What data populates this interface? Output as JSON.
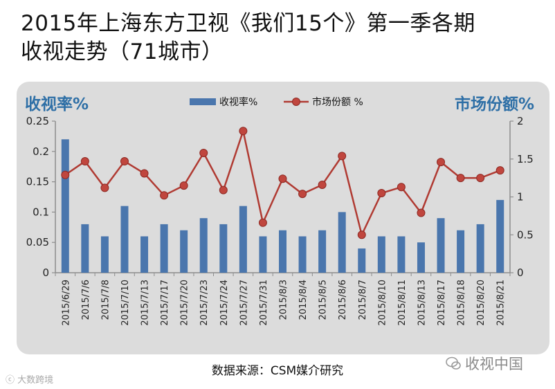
{
  "header": {
    "title_line1": "2015年上海东方卫视《我们15个》第一季各期",
    "title_line2": "收视走势（71城市）"
  },
  "footer": {
    "source": "数据来源：CSM媒介研究",
    "watermark_left": "大数跨境",
    "watermark_right": "收视中国"
  },
  "colors": {
    "bar": "#4a76ad",
    "line": "#b03a32",
    "marker": "#c0463e",
    "axis_title": "#2e6fa6",
    "panel": "#dcdcdc"
  },
  "icons": {
    "watermark_left": "camera-logo-icon",
    "watermark_right": "chat-bubble-logo-icon"
  },
  "chart_data": {
    "type": "bar",
    "left_title": "收视率%",
    "right_title": "市场份额%",
    "categories": [
      "2015/6/29",
      "2015/7/6",
      "2015/7/8",
      "2015/7/10",
      "2015/7/13",
      "2015/7/17",
      "2015/7/20",
      "2015/7/23",
      "2015/7/24",
      "2015/7/27",
      "2015/7/31",
      "2015/8/3",
      "2015/8/4",
      "2015/8/5",
      "2015/8/6",
      "2015/8/7",
      "2015/8/10",
      "2015/8/11",
      "2015/8/13",
      "2015/8/17",
      "2015/8/18",
      "2015/8/20",
      "2015/8/21"
    ],
    "series": [
      {
        "name": "收视率%",
        "type": "bar",
        "axis": "left",
        "values": [
          0.22,
          0.08,
          0.06,
          0.11,
          0.06,
          0.08,
          0.07,
          0.09,
          0.08,
          0.11,
          0.06,
          0.07,
          0.06,
          0.07,
          0.1,
          0.04,
          0.06,
          0.06,
          0.05,
          0.09,
          0.07,
          0.08,
          0.12
        ]
      },
      {
        "name": "市场份额 %",
        "type": "line",
        "axis": "right",
        "values": [
          1.29,
          1.47,
          1.12,
          1.47,
          1.31,
          1.02,
          1.15,
          1.58,
          1.09,
          1.87,
          0.66,
          1.24,
          1.04,
          1.16,
          1.54,
          0.5,
          1.05,
          1.13,
          0.79,
          1.46,
          1.25,
          1.25,
          1.35
        ]
      }
    ],
    "y_left": {
      "min": 0,
      "max": 0.25,
      "ticks": [
        "0",
        "0.05",
        "0.1",
        "0.15",
        "0.2",
        "0.25"
      ]
    },
    "y_right": {
      "min": 0,
      "max": 2,
      "ticks": [
        "0",
        "0.5",
        "1",
        "1.5",
        "2"
      ]
    },
    "legend_position": "top-center",
    "grid": false
  }
}
